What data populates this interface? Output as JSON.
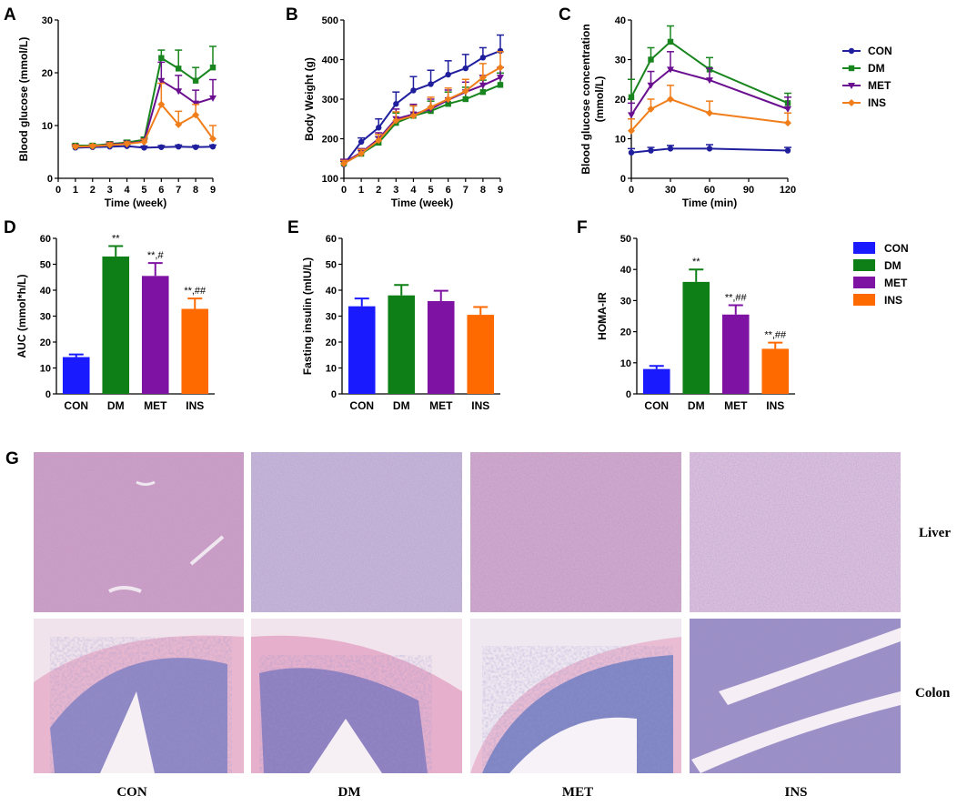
{
  "colors": {
    "CON": "#1f1f9e",
    "DM": "#18851e",
    "MET": "#6a0f8f",
    "INS": "#f07e1b",
    "bar_CON": "#1a1aff",
    "bar_DM": "#0e7f17",
    "bar_MET": "#7e13a3",
    "bar_INS": "#ff6a00"
  },
  "legend_top": [
    "CON",
    "DM",
    "MET",
    "INS"
  ],
  "legend_mid": [
    "CON",
    "DM",
    "MET",
    "INS"
  ],
  "chart_data": [
    {
      "id": "A",
      "panel_label": "A",
      "type": "line",
      "title": "",
      "xlabel": "Time (week)",
      "ylabel": "Blood glucose (mmol/L)",
      "xlim": [
        0,
        9
      ],
      "ylim": [
        0,
        30
      ],
      "xticks": [
        0,
        1,
        2,
        3,
        4,
        5,
        6,
        7,
        8,
        9
      ],
      "yticks": [
        0,
        10,
        20,
        30
      ],
      "series": [
        {
          "name": "CON",
          "x": [
            1,
            2,
            3,
            4,
            5,
            6,
            7,
            8,
            9
          ],
          "y": [
            5.8,
            5.9,
            6.0,
            6.1,
            5.8,
            5.9,
            6.0,
            5.9,
            6.0
          ],
          "err": [
            0.3,
            0.3,
            0.3,
            0.3,
            0.3,
            0.3,
            0.3,
            0.3,
            0.3
          ]
        },
        {
          "name": "DM",
          "x": [
            1,
            2,
            3,
            4,
            5,
            6,
            7,
            8,
            9
          ],
          "y": [
            6.2,
            6.2,
            6.5,
            6.8,
            7.3,
            22.8,
            20.8,
            18.5,
            21.0
          ],
          "err": [
            0.3,
            0.3,
            0.4,
            0.4,
            0.5,
            1.5,
            3.5,
            2.5,
            4.0
          ]
        },
        {
          "name": "MET",
          "x": [
            1,
            2,
            3,
            4,
            5,
            6,
            7,
            8,
            9
          ],
          "y": [
            6.0,
            6.0,
            6.4,
            6.6,
            7.0,
            18.5,
            16.5,
            14.2,
            15.2
          ],
          "err": [
            0.3,
            0.3,
            0.4,
            0.4,
            0.5,
            3.5,
            3.0,
            2.5,
            3.5
          ]
        },
        {
          "name": "INS",
          "x": [
            1,
            2,
            3,
            4,
            5,
            6,
            7,
            8,
            9
          ],
          "y": [
            6.0,
            6.1,
            6.3,
            6.5,
            6.9,
            14.0,
            10.2,
            12.0,
            7.5
          ],
          "err": [
            0.3,
            0.3,
            0.4,
            0.4,
            0.5,
            4.0,
            2.5,
            2.0,
            2.5
          ]
        }
      ]
    },
    {
      "id": "B",
      "panel_label": "B",
      "type": "line",
      "title": "",
      "xlabel": "Time (week)",
      "ylabel": "Body Weight (g)",
      "xlim": [
        0,
        9
      ],
      "ylim": [
        100,
        500
      ],
      "xticks": [
        0,
        1,
        2,
        3,
        4,
        5,
        6,
        7,
        8,
        9
      ],
      "yticks": [
        100,
        200,
        300,
        400,
        500
      ],
      "series": [
        {
          "name": "CON",
          "x": [
            0,
            1,
            2,
            3,
            4,
            5,
            6,
            7,
            8,
            9
          ],
          "y": [
            135,
            192,
            228,
            288,
            322,
            338,
            362,
            378,
            405,
            422
          ],
          "err": [
            8,
            10,
            22,
            30,
            35,
            35,
            35,
            35,
            25,
            40
          ]
        },
        {
          "name": "DM",
          "x": [
            0,
            1,
            2,
            3,
            4,
            5,
            6,
            7,
            8,
            9
          ],
          "y": [
            138,
            162,
            190,
            240,
            258,
            270,
            288,
            300,
            318,
            336
          ],
          "err": [
            8,
            10,
            15,
            25,
            25,
            25,
            30,
            30,
            30,
            30
          ]
        },
        {
          "name": "MET",
          "x": [
            0,
            1,
            2,
            3,
            4,
            5,
            6,
            7,
            8,
            9
          ],
          "y": [
            140,
            165,
            200,
            250,
            262,
            275,
            298,
            318,
            335,
            355
          ],
          "err": [
            8,
            10,
            15,
            25,
            25,
            25,
            25,
            25,
            25,
            25
          ]
        },
        {
          "name": "INS",
          "x": [
            0,
            1,
            2,
            3,
            4,
            5,
            6,
            7,
            8,
            9
          ],
          "y": [
            137,
            163,
            196,
            246,
            258,
            280,
            300,
            320,
            355,
            380
          ],
          "err": [
            8,
            10,
            15,
            22,
            25,
            25,
            28,
            30,
            35,
            40
          ]
        }
      ]
    },
    {
      "id": "C",
      "panel_label": "C",
      "type": "line",
      "title": "",
      "xlabel": "Time (min)",
      "ylabel": "Blood glucose concentration (mmol/L)",
      "ylabel_lines": [
        "Blood glucose concentration",
        "(mmol/L)"
      ],
      "xlim": [
        0,
        120
      ],
      "ylim": [
        0,
        40
      ],
      "xticks": [
        0,
        30,
        60,
        90,
        120
      ],
      "yticks": [
        0,
        10,
        20,
        30,
        40
      ],
      "series": [
        {
          "name": "CON",
          "x": [
            0,
            15,
            30,
            60,
            120
          ],
          "y": [
            6.5,
            7.0,
            7.5,
            7.5,
            7.0
          ],
          "err": [
            1.0,
            0.8,
            0.8,
            1.0,
            0.8
          ]
        },
        {
          "name": "DM",
          "x": [
            0,
            15,
            30,
            60,
            120
          ],
          "y": [
            20.5,
            30.0,
            34.5,
            27.5,
            19.0
          ],
          "err": [
            4.5,
            3.0,
            4.0,
            3.0,
            2.5
          ]
        },
        {
          "name": "MET",
          "x": [
            0,
            15,
            30,
            60,
            120
          ],
          "y": [
            16.0,
            23.5,
            27.5,
            24.8,
            17.5
          ],
          "err": [
            3.0,
            3.5,
            4.5,
            3.0,
            3.0
          ]
        },
        {
          "name": "INS",
          "x": [
            0,
            15,
            30,
            60,
            120
          ],
          "y": [
            12.0,
            17.5,
            20.0,
            16.5,
            14.0
          ],
          "err": [
            3.0,
            2.5,
            3.5,
            3.0,
            2.5
          ]
        }
      ]
    },
    {
      "id": "D",
      "panel_label": "D",
      "type": "bar",
      "title": "",
      "xlabel": "",
      "ylabel": "AUC (mmol*h/L)",
      "ylim": [
        0,
        60
      ],
      "yticks": [
        0,
        10,
        20,
        30,
        40,
        50,
        60
      ],
      "categories": [
        "CON",
        "DM",
        "MET",
        "INS"
      ],
      "values": [
        14.2,
        53.0,
        45.5,
        32.8
      ],
      "err": [
        1.0,
        4.0,
        5.0,
        4.0
      ],
      "annotations": [
        "",
        "**",
        "**,#",
        "**,##"
      ]
    },
    {
      "id": "E",
      "panel_label": "E",
      "type": "bar",
      "title": "",
      "xlabel": "",
      "ylabel": "Fasting insulin (mIU/L)",
      "ylim": [
        0,
        60
      ],
      "yticks": [
        0,
        10,
        20,
        30,
        40,
        50,
        60
      ],
      "categories": [
        "CON",
        "DM",
        "MET",
        "INS"
      ],
      "values": [
        33.8,
        38.0,
        35.8,
        30.5
      ],
      "err": [
        3.0,
        4.0,
        4.0,
        3.0
      ],
      "annotations": [
        "",
        "",
        "",
        ""
      ]
    },
    {
      "id": "F",
      "panel_label": "F",
      "type": "bar",
      "title": "",
      "xlabel": "",
      "ylabel": "HOMA-IR",
      "ylim": [
        0,
        50
      ],
      "yticks": [
        0,
        10,
        20,
        30,
        40,
        50
      ],
      "categories": [
        "CON",
        "DM",
        "MET",
        "INS"
      ],
      "values": [
        8.0,
        36.0,
        25.5,
        14.5
      ],
      "err": [
        1.0,
        4.0,
        3.0,
        2.0
      ],
      "annotations": [
        "",
        "**",
        "**,##",
        "**,##"
      ]
    }
  ],
  "histology": {
    "panel_label": "G",
    "columns": [
      "CON",
      "DM",
      "MET",
      "INS"
    ],
    "rows": [
      "Liver",
      "Colon"
    ]
  }
}
